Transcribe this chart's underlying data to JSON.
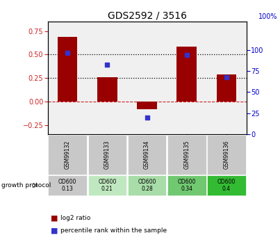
{
  "title": "GDS2592 / 3516",
  "samples": [
    "GSM99132",
    "GSM99133",
    "GSM99134",
    "GSM99135",
    "GSM99136"
  ],
  "log2_ratio": [
    0.69,
    0.26,
    -0.08,
    0.585,
    0.285
  ],
  "percentile_rank": [
    96,
    82,
    20,
    94,
    68
  ],
  "bar_color": "#990000",
  "dot_color": "#3333cc",
  "ylim_left": [
    -0.35,
    0.85
  ],
  "ylim_right": [
    0,
    133.33
  ],
  "yticks_left": [
    -0.25,
    0.0,
    0.25,
    0.5,
    0.75
  ],
  "yticks_right": [
    0,
    25,
    50,
    75,
    100
  ],
  "hlines": [
    0.25,
    0.5
  ],
  "hline_zero": 0.0,
  "protocol_label": "growth protocol",
  "protocol_values": [
    "OD600\n0.13",
    "OD600\n0.21",
    "OD600\n0.28",
    "OD600\n0.34",
    "OD600\n0.4"
  ],
  "protocol_colors": [
    "#c8c8c8",
    "#c0e8c0",
    "#a8dca8",
    "#70c870",
    "#33bb33"
  ],
  "background_color": "#ffffff",
  "plot_bg_color": "#f0f0f0",
  "gsm_bg_color": "#c8c8c8"
}
